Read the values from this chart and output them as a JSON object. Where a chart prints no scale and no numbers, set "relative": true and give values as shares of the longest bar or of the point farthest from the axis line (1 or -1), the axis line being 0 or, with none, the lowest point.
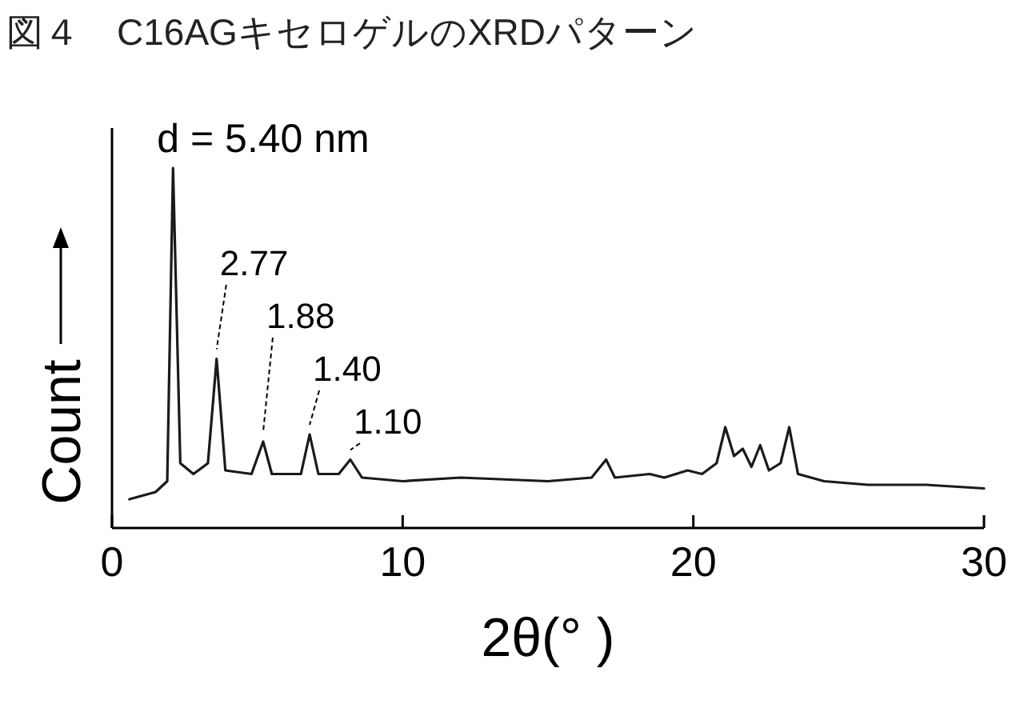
{
  "chart_data": {
    "type": "line",
    "title": "図４　C16AGキセロゲルのXRDパターン",
    "xlabel": "2θ(° )",
    "ylabel": "Count",
    "relative": true,
    "color": "#1a1a1a",
    "xlim": [
      0,
      30
    ],
    "xticks": [
      0,
      10,
      20,
      30
    ],
    "grid": false,
    "marker": "none",
    "line_style": "solid",
    "x": [
      0.6,
      1.5,
      1.9,
      2.1,
      2.35,
      2.8,
      3.3,
      3.6,
      3.9,
      4.8,
      5.2,
      5.5,
      6.5,
      6.8,
      7.1,
      7.8,
      8.2,
      8.6,
      10,
      12,
      15,
      16.5,
      17.0,
      17.3,
      18.5,
      19,
      19.8,
      20.3,
      20.8,
      21.1,
      21.4,
      21.7,
      22.0,
      22.3,
      22.6,
      23.0,
      23.3,
      23.6,
      24.5,
      26,
      28,
      30
    ],
    "values": [
      0.08,
      0.1,
      0.13,
      1.0,
      0.18,
      0.15,
      0.18,
      0.47,
      0.16,
      0.15,
      0.24,
      0.15,
      0.15,
      0.26,
      0.15,
      0.15,
      0.19,
      0.14,
      0.13,
      0.14,
      0.13,
      0.14,
      0.19,
      0.14,
      0.15,
      0.14,
      0.16,
      0.15,
      0.18,
      0.28,
      0.2,
      0.22,
      0.17,
      0.23,
      0.16,
      0.18,
      0.28,
      0.15,
      0.13,
      0.12,
      0.12,
      0.11
    ],
    "annotations": [
      {
        "text": "d = 5.40 nm",
        "x": 2.1,
        "y": 1.0
      },
      {
        "text": "2.77",
        "x": 3.6,
        "y": 0.47
      },
      {
        "text": "1.88",
        "x": 5.2,
        "y": 0.24
      },
      {
        "text": "1.40",
        "x": 6.8,
        "y": 0.26
      },
      {
        "text": "1.10",
        "x": 8.2,
        "y": 0.19
      }
    ]
  }
}
